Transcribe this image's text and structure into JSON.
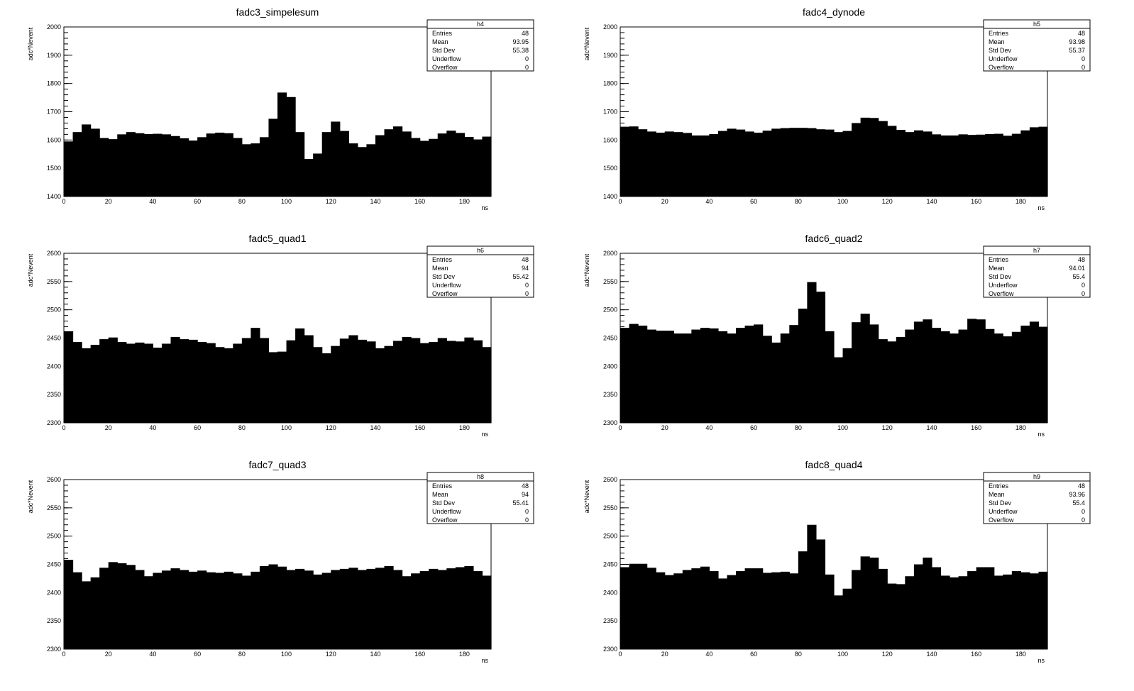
{
  "chart_data": [
    {
      "type": "bar",
      "title": "fadc3_simpelesum",
      "xlabel": "ns",
      "ylabel": "adc*Nevent",
      "xlim": [
        0,
        192
      ],
      "ylim": [
        1400,
        2000
      ],
      "bin_width": 4,
      "yticks": [
        1400,
        1500,
        1600,
        1700,
        1800,
        1900,
        2000
      ],
      "xticks": [
        0,
        20,
        40,
        60,
        80,
        100,
        120,
        140,
        160,
        180
      ],
      "values": [
        1595,
        1628,
        1655,
        1640,
        1607,
        1603,
        1620,
        1628,
        1624,
        1621,
        1622,
        1620,
        1614,
        1606,
        1598,
        1610,
        1623,
        1626,
        1624,
        1607,
        1585,
        1588,
        1610,
        1675,
        1768,
        1752,
        1628,
        1533,
        1552,
        1628,
        1665,
        1632,
        1588,
        1575,
        1585,
        1617,
        1638,
        1648,
        1630,
        1607,
        1597,
        1604,
        1623,
        1633,
        1625,
        1611,
        1602,
        1612
      ],
      "stats": {
        "name": "h4",
        "rows": [
          {
            "label": "Entries",
            "value": "48"
          },
          {
            "label": "Mean",
            "value": "93.95"
          },
          {
            "label": "Std Dev",
            "value": "55.38"
          },
          {
            "label": "Underflow",
            "value": "0"
          },
          {
            "label": "Overflow",
            "value": "0"
          }
        ]
      }
    },
    {
      "type": "bar",
      "title": "fadc4_dynode",
      "xlabel": "ns",
      "ylabel": "adc*Nevent",
      "xlim": [
        0,
        192
      ],
      "ylim": [
        1400,
        2000
      ],
      "bin_width": 4,
      "yticks": [
        1400,
        1500,
        1600,
        1700,
        1800,
        1900,
        2000
      ],
      "xticks": [
        0,
        20,
        40,
        60,
        80,
        100,
        120,
        140,
        160,
        180
      ],
      "values": [
        1647,
        1648,
        1638,
        1630,
        1626,
        1630,
        1628,
        1625,
        1616,
        1616,
        1621,
        1632,
        1640,
        1637,
        1630,
        1626,
        1633,
        1640,
        1642,
        1643,
        1643,
        1642,
        1638,
        1637,
        1628,
        1632,
        1660,
        1679,
        1678,
        1667,
        1650,
        1636,
        1628,
        1634,
        1630,
        1620,
        1616,
        1616,
        1620,
        1618,
        1619,
        1621,
        1622,
        1615,
        1622,
        1634,
        1645,
        1647
      ],
      "stats": {
        "name": "h5",
        "rows": [
          {
            "label": "Entries",
            "value": "48"
          },
          {
            "label": "Mean",
            "value": "93.98"
          },
          {
            "label": "Std Dev",
            "value": "55.37"
          },
          {
            "label": "Underflow",
            "value": "0"
          },
          {
            "label": "Overflow",
            "value": "0"
          }
        ]
      }
    },
    {
      "type": "bar",
      "title": "fadc5_quad1",
      "xlabel": "ns",
      "ylabel": "adc*Nevent",
      "xlim": [
        0,
        192
      ],
      "ylim": [
        2300,
        2600
      ],
      "bin_width": 4,
      "yticks": [
        2300,
        2350,
        2400,
        2450,
        2500,
        2550,
        2600
      ],
      "xticks": [
        0,
        20,
        40,
        60,
        80,
        100,
        120,
        140,
        160,
        180
      ],
      "values": [
        2462,
        2443,
        2432,
        2438,
        2448,
        2451,
        2443,
        2440,
        2442,
        2440,
        2433,
        2440,
        2452,
        2448,
        2447,
        2443,
        2441,
        2434,
        2432,
        2440,
        2450,
        2468,
        2450,
        2425,
        2426,
        2446,
        2467,
        2455,
        2434,
        2423,
        2436,
        2449,
        2455,
        2447,
        2444,
        2432,
        2436,
        2445,
        2452,
        2450,
        2441,
        2443,
        2450,
        2445,
        2444,
        2451,
        2446,
        2434
      ],
      "stats": {
        "name": "h6",
        "rows": [
          {
            "label": "Entries",
            "value": "48"
          },
          {
            "label": "Mean",
            "value": "94"
          },
          {
            "label": "Std Dev",
            "value": "55.42"
          },
          {
            "label": "Underflow",
            "value": "0"
          },
          {
            "label": "Overflow",
            "value": "0"
          }
        ]
      }
    },
    {
      "type": "bar",
      "title": "fadc6_quad2",
      "xlabel": "ns",
      "ylabel": "adc*Nevent",
      "xlim": [
        0,
        192
      ],
      "ylim": [
        2300,
        2600
      ],
      "bin_width": 4,
      "yticks": [
        2300,
        2350,
        2400,
        2450,
        2500,
        2550,
        2600
      ],
      "xticks": [
        0,
        20,
        40,
        60,
        80,
        100,
        120,
        140,
        160,
        180
      ],
      "values": [
        2468,
        2475,
        2472,
        2465,
        2463,
        2463,
        2458,
        2458,
        2465,
        2468,
        2467,
        2462,
        2458,
        2468,
        2472,
        2474,
        2454,
        2442,
        2458,
        2473,
        2502,
        2549,
        2532,
        2462,
        2416,
        2432,
        2478,
        2493,
        2474,
        2448,
        2444,
        2452,
        2465,
        2479,
        2483,
        2468,
        2462,
        2458,
        2465,
        2484,
        2483,
        2466,
        2458,
        2453,
        2461,
        2472,
        2479,
        2470
      ],
      "stats": {
        "name": "h7",
        "rows": [
          {
            "label": "Entries",
            "value": "48"
          },
          {
            "label": "Mean",
            "value": "94.01"
          },
          {
            "label": "Std Dev",
            "value": "55.4"
          },
          {
            "label": "Underflow",
            "value": "0"
          },
          {
            "label": "Overflow",
            "value": "0"
          }
        ]
      }
    },
    {
      "type": "bar",
      "title": "fadc7_quad3",
      "xlabel": "ns",
      "ylabel": "adc*Nevent",
      "xlim": [
        0,
        192
      ],
      "ylim": [
        2300,
        2600
      ],
      "bin_width": 4,
      "yticks": [
        2300,
        2350,
        2400,
        2450,
        2500,
        2550,
        2600
      ],
      "xticks": [
        0,
        20,
        40,
        60,
        80,
        100,
        120,
        140,
        160,
        180
      ],
      "values": [
        2458,
        2436,
        2420,
        2427,
        2444,
        2454,
        2452,
        2449,
        2440,
        2429,
        2435,
        2439,
        2443,
        2440,
        2437,
        2439,
        2436,
        2435,
        2437,
        2434,
        2430,
        2437,
        2447,
        2450,
        2446,
        2440,
        2442,
        2439,
        2432,
        2435,
        2440,
        2442,
        2444,
        2440,
        2442,
        2444,
        2447,
        2440,
        2429,
        2434,
        2438,
        2442,
        2440,
        2443,
        2445,
        2447,
        2438,
        2430
      ],
      "stats": {
        "name": "h8",
        "rows": [
          {
            "label": "Entries",
            "value": "48"
          },
          {
            "label": "Mean",
            "value": "94"
          },
          {
            "label": "Std Dev",
            "value": "55.41"
          },
          {
            "label": "Underflow",
            "value": "0"
          },
          {
            "label": "Overflow",
            "value": "0"
          }
        ]
      }
    },
    {
      "type": "bar",
      "title": "fadc8_quad4",
      "xlabel": "ns",
      "ylabel": "adc*Nevent",
      "xlim": [
        0,
        192
      ],
      "ylim": [
        2300,
        2600
      ],
      "bin_width": 4,
      "yticks": [
        2300,
        2350,
        2400,
        2450,
        2500,
        2550,
        2600
      ],
      "xticks": [
        0,
        20,
        40,
        60,
        80,
        100,
        120,
        140,
        160,
        180
      ],
      "values": [
        2445,
        2451,
        2451,
        2444,
        2436,
        2431,
        2434,
        2440,
        2443,
        2446,
        2438,
        2425,
        2431,
        2438,
        2443,
        2443,
        2435,
        2436,
        2437,
        2434,
        2473,
        2520,
        2494,
        2432,
        2395,
        2407,
        2440,
        2464,
        2462,
        2442,
        2416,
        2415,
        2429,
        2450,
        2462,
        2445,
        2430,
        2427,
        2429,
        2438,
        2445,
        2445,
        2430,
        2432,
        2438,
        2436,
        2434,
        2437
      ],
      "stats": {
        "name": "h9",
        "rows": [
          {
            "label": "Entries",
            "value": "48"
          },
          {
            "label": "Mean",
            "value": "93.96"
          },
          {
            "label": "Std Dev",
            "value": "55.4"
          },
          {
            "label": "Underflow",
            "value": "0"
          },
          {
            "label": "Overflow",
            "value": "0"
          }
        ]
      }
    }
  ]
}
